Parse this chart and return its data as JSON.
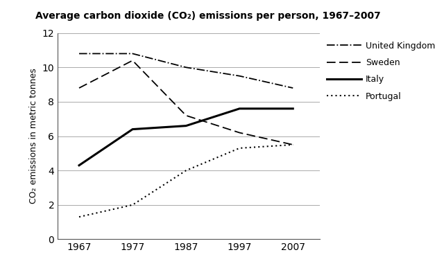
{
  "title": "Average carbon dioxide (CO₂) emissions per person, 1967–2007",
  "ylabel": "CO₂ emissions in metric tonnes",
  "years": [
    1967,
    1977,
    1987,
    1997,
    2007
  ],
  "united_kingdom": [
    10.8,
    10.8,
    10.0,
    9.5,
    8.8
  ],
  "sweden": [
    8.8,
    10.4,
    7.2,
    6.2,
    5.5
  ],
  "italy": [
    4.3,
    6.4,
    6.6,
    7.6,
    7.6
  ],
  "portugal": [
    1.3,
    2.0,
    4.0,
    5.3,
    5.5
  ],
  "ylim": [
    0,
    12
  ],
  "yticks": [
    0,
    2,
    4,
    6,
    8,
    10,
    12
  ],
  "line_color": "#000000",
  "bg_color": "#ffffff",
  "grid_color": "#aaaaaa"
}
